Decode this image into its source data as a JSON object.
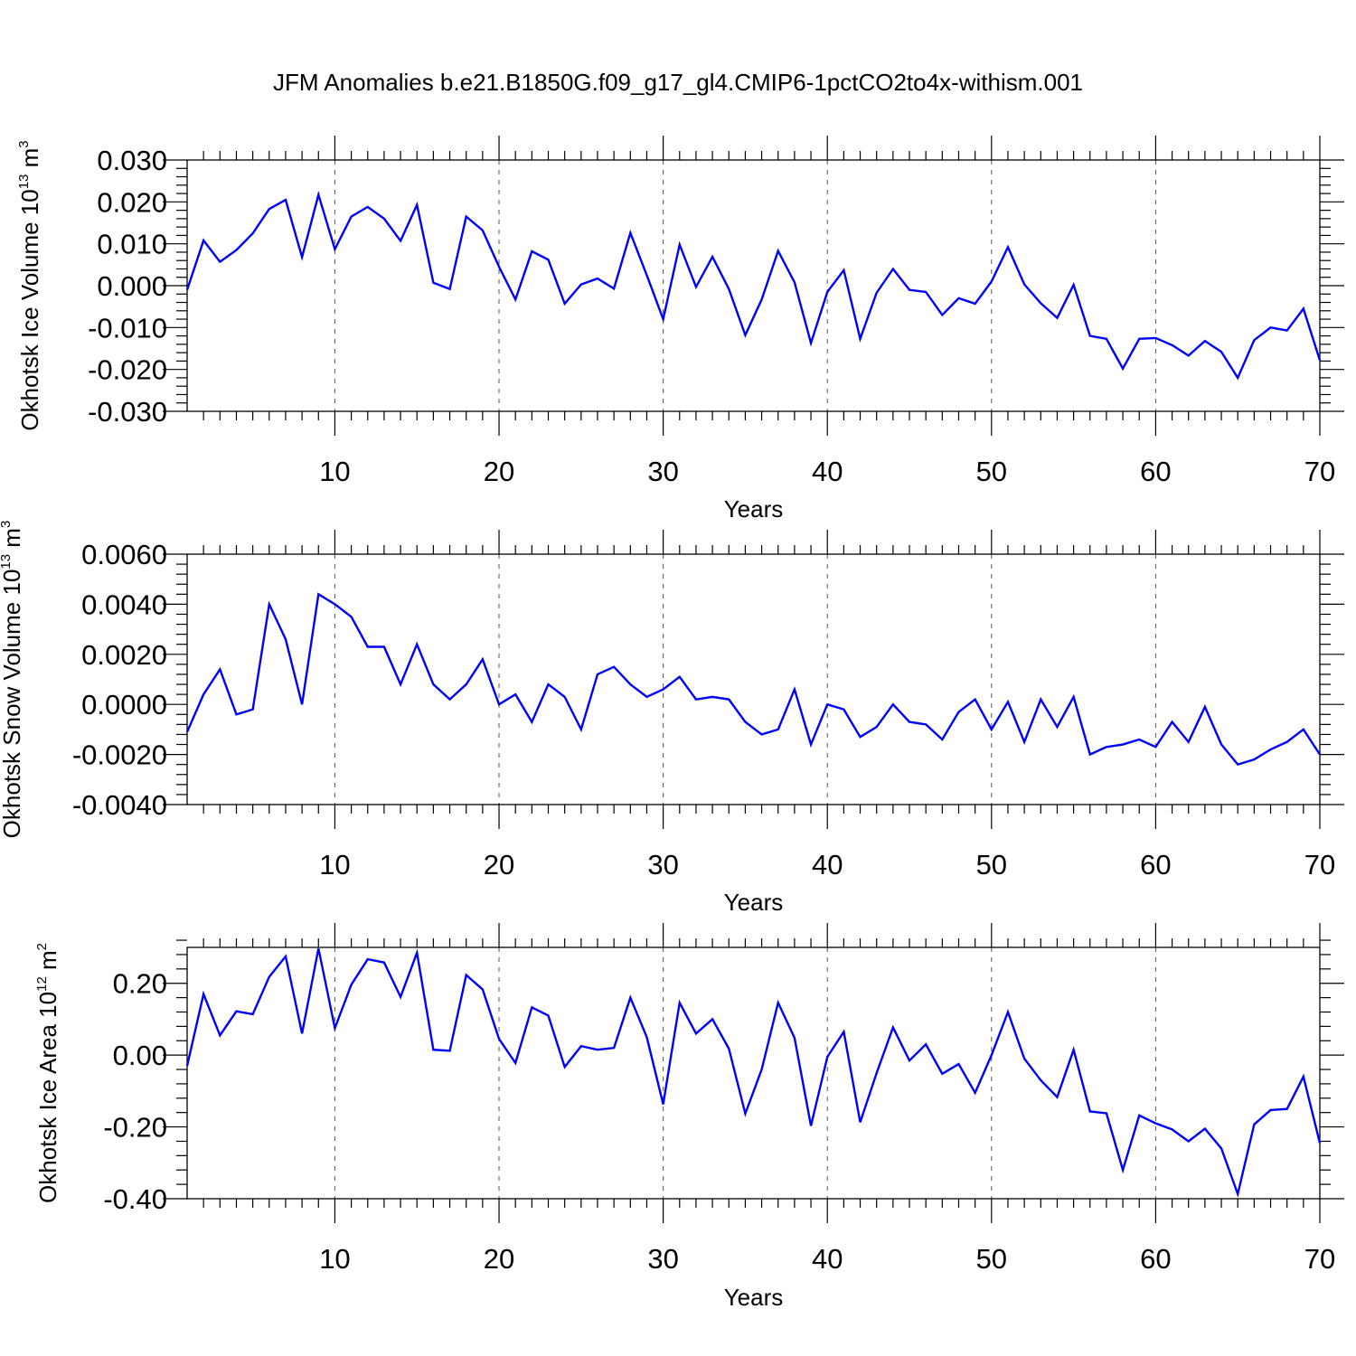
{
  "title": "JFM Anomalies b.e21.B1850G.f09_g17_gl4.CMIP6-1pctCO2to4x-withism.001",
  "colors": {
    "series": "#0000ff",
    "axes": "#000000",
    "grid": "#555555"
  },
  "chart_data": [
    {
      "type": "line",
      "name": "ice-volume",
      "ylabel": {
        "text": "Okhotsk Ice Volume 10",
        "exp": "13",
        "unit": "m",
        "unit_exp": "3"
      },
      "xlabel": "Years",
      "xlim": [
        1,
        70
      ],
      "ylim": [
        -0.03,
        0.03
      ],
      "yticks": [
        -0.03,
        -0.02,
        -0.01,
        0.0,
        0.01,
        0.02,
        0.03
      ],
      "ytick_labels": [
        "-0.030",
        "-0.020",
        "-0.010",
        "0.000",
        "0.010",
        "0.020",
        "0.030"
      ],
      "xticks": [
        10,
        20,
        30,
        40,
        50,
        60,
        70
      ],
      "xtick_labels": [
        "10",
        "20",
        "30",
        "40",
        "50",
        "60",
        "70"
      ],
      "grid": "dashed vertical at x ticks",
      "x_start": 1,
      "values": [
        -0.001,
        0.0108,
        0.0057,
        0.0085,
        0.0125,
        0.0183,
        0.0205,
        0.0068,
        0.0217,
        0.0087,
        0.0165,
        0.0188,
        0.016,
        0.0107,
        0.0193,
        0.0007,
        -0.0008,
        0.0165,
        0.0132,
        0.0045,
        -0.0033,
        0.0082,
        0.0062,
        -0.0043,
        0.0003,
        0.0017,
        -0.0007,
        0.0126,
        0.0025,
        -0.008,
        0.0098,
        -0.0003,
        0.0069,
        -0.0008,
        -0.0118,
        -0.0033,
        0.0083,
        0.0008,
        -0.0137,
        -0.0015,
        0.0037,
        -0.0127,
        -0.0017,
        0.004,
        -0.001,
        -0.0015,
        -0.007,
        -0.003,
        -0.0043,
        0.001,
        0.0092,
        0.0003,
        -0.0042,
        -0.0077,
        0.0002,
        -0.012,
        -0.0127,
        -0.0198,
        -0.0127,
        -0.0125,
        -0.0142,
        -0.0167,
        -0.0132,
        -0.0158,
        -0.022,
        -0.013,
        -0.01,
        -0.0107,
        -0.0055,
        -0.0178
      ]
    },
    {
      "type": "line",
      "name": "snow-volume",
      "ylabel": {
        "text": "Okhotsk Snow Volume 10",
        "exp": "13",
        "unit": "m",
        "unit_exp": "3"
      },
      "xlabel": "Years",
      "xlim": [
        1,
        70
      ],
      "ylim": [
        -0.004,
        0.006
      ],
      "yticks": [
        -0.004,
        -0.002,
        0.0,
        0.002,
        0.004,
        0.006
      ],
      "ytick_labels": [
        "-0.0040",
        "-0.0020",
        "0.0000",
        "0.0020",
        "0.0040",
        "0.0060"
      ],
      "xticks": [
        10,
        20,
        30,
        40,
        50,
        60,
        70
      ],
      "xtick_labels": [
        "10",
        "20",
        "30",
        "40",
        "50",
        "60",
        "70"
      ],
      "grid": "dashed vertical at x ticks",
      "x_start": 1,
      "values": [
        -0.0011,
        0.0004,
        0.0014,
        -0.0004,
        -0.0002,
        0.004,
        0.0026,
        0.0,
        0.0044,
        0.004,
        0.0035,
        0.0023,
        0.0023,
        0.0008,
        0.0024,
        0.0008,
        0.0002,
        0.0008,
        0.0018,
        0.0,
        0.0004,
        -0.0007,
        0.0008,
        0.0003,
        -0.001,
        0.0012,
        0.0015,
        0.0008,
        0.0003,
        0.0006,
        0.0011,
        0.0002,
        0.0003,
        0.0002,
        -0.0007,
        -0.0012,
        -0.001,
        0.0006,
        -0.0016,
        0.0,
        -0.0002,
        -0.0013,
        -0.0009,
        0.0,
        -0.0007,
        -0.0008,
        -0.0014,
        -0.0003,
        0.0002,
        -0.001,
        0.0001,
        -0.0015,
        0.0002,
        -0.0009,
        0.0003,
        -0.002,
        -0.0017,
        -0.0016,
        -0.0014,
        -0.0017,
        -0.0007,
        -0.0015,
        -0.0001,
        -0.0016,
        -0.0024,
        -0.0022,
        -0.0018,
        -0.0015,
        -0.001,
        -0.002
      ]
    },
    {
      "type": "line",
      "name": "ice-area",
      "ylabel": {
        "text": "Okhotsk Ice Area 10",
        "exp": "12",
        "unit": "m",
        "unit_exp": "2"
      },
      "xlabel": "Years",
      "xlim": [
        1,
        70
      ],
      "ylim": [
        -0.4,
        0.3
      ],
      "yticks": [
        -0.4,
        -0.2,
        0.0,
        0.2
      ],
      "ytick_labels": [
        "-0.40",
        "-0.20",
        "0.00",
        "0.20"
      ],
      "xticks": [
        10,
        20,
        30,
        40,
        50,
        60,
        70
      ],
      "xtick_labels": [
        "10",
        "20",
        "30",
        "40",
        "50",
        "60",
        "70"
      ],
      "grid": "dashed vertical at x ticks",
      "x_start": 1,
      "values": [
        -0.03,
        0.17,
        0.055,
        0.122,
        0.114,
        0.218,
        0.275,
        0.06,
        0.297,
        0.075,
        0.196,
        0.267,
        0.258,
        0.162,
        0.285,
        0.015,
        0.012,
        0.223,
        0.183,
        0.045,
        -0.022,
        0.133,
        0.11,
        -0.033,
        0.025,
        0.015,
        0.02,
        0.16,
        0.05,
        -0.137,
        0.146,
        0.06,
        0.1,
        0.018,
        -0.163,
        -0.04,
        0.146,
        0.048,
        -0.197,
        -0.005,
        0.065,
        -0.187,
        -0.05,
        0.077,
        -0.015,
        0.03,
        -0.052,
        -0.025,
        -0.105,
        0.0,
        0.12,
        -0.01,
        -0.07,
        -0.117,
        0.015,
        -0.157,
        -0.162,
        -0.32,
        -0.168,
        -0.19,
        -0.207,
        -0.24,
        -0.205,
        -0.26,
        -0.387,
        -0.193,
        -0.153,
        -0.15,
        -0.06,
        -0.245
      ]
    }
  ]
}
